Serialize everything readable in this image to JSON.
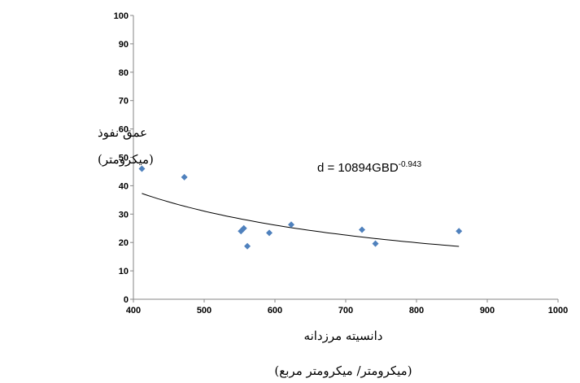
{
  "chart_data": {
    "type": "scatter",
    "title": "",
    "xlabel_line1": "دانسیته مرزدانه",
    "xlabel_line2": "(میکرومتر/ میکرومتر مربع)",
    "ylabel_line1": "عمق نفوذ",
    "ylabel_line2": "(میکرومتر)",
    "xlim": [
      400,
      1000
    ],
    "ylim": [
      0,
      100
    ],
    "x_ticks": [
      "400",
      "500",
      "600",
      "700",
      "800",
      "900",
      "1000"
    ],
    "y_ticks": [
      "0",
      "10",
      "20",
      "30",
      "40",
      "50",
      "60",
      "70",
      "80",
      "90",
      "100"
    ],
    "grid": false,
    "points": [
      {
        "x": 412,
        "y": 46
      },
      {
        "x": 472,
        "y": 43
      },
      {
        "x": 552,
        "y": 24
      },
      {
        "x": 556,
        "y": 25
      },
      {
        "x": 561,
        "y": 18.7
      },
      {
        "x": 592,
        "y": 23.4
      },
      {
        "x": 623,
        "y": 26.3
      },
      {
        "x": 723,
        "y": 24.5
      },
      {
        "x": 742,
        "y": 19.6
      },
      {
        "x": 860,
        "y": 24
      }
    ],
    "marker_color": "#4f81bd",
    "trendline": {
      "type": "power",
      "coefficient": 10894,
      "exponent": -0.943,
      "x_range": [
        412,
        860
      ],
      "color": "#000000"
    },
    "equation": {
      "base": "d = 10894GBD",
      "exponent": "-0.943"
    }
  }
}
